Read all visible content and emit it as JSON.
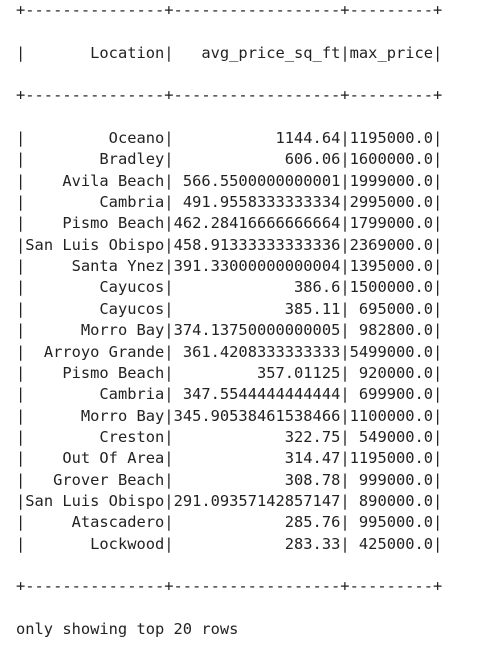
{
  "table": {
    "columns": [
      "Location",
      "avg_price_sq_ft",
      "max_price"
    ],
    "rows": [
      [
        "Oceano",
        "1144.64",
        "1195000.0"
      ],
      [
        "Bradley",
        "606.06",
        "1600000.0"
      ],
      [
        "Avila Beach",
        "566.5500000000001",
        "1999000.0"
      ],
      [
        "Cambria",
        "491.9558333333334",
        "2995000.0"
      ],
      [
        "Pismo Beach",
        "462.28416666666664",
        "1799000.0"
      ],
      [
        "San Luis Obispo",
        "458.91333333333336",
        "2369000.0"
      ],
      [
        "Santa Ynez",
        "391.33000000000004",
        "1395000.0"
      ],
      [
        "Cayucos",
        "386.6",
        "1500000.0"
      ],
      [
        "Cayucos",
        "385.11",
        "695000.0"
      ],
      [
        "Morro Bay",
        "374.13750000000005",
        "982800.0"
      ],
      [
        "Arroyo Grande",
        "361.4208333333333",
        "5499000.0"
      ],
      [
        "Pismo Beach",
        "357.01125",
        "920000.0"
      ],
      [
        "Cambria",
        "347.5544444444444",
        "699900.0"
      ],
      [
        "Morro Bay",
        "345.90538461538466",
        "1100000.0"
      ],
      [
        "Creston",
        "322.75",
        "549000.0"
      ],
      [
        "Out Of Area",
        "314.47",
        "1195000.0"
      ],
      [
        "Grover Beach",
        "308.78",
        "999000.0"
      ],
      [
        "San Luis Obispo",
        "291.09357142857147",
        "890000.0"
      ],
      [
        "Atascadero",
        "285.76",
        "995000.0"
      ],
      [
        "Lockwood",
        "283.33",
        "425000.0"
      ]
    ]
  },
  "footer": "only showing top 20 rows"
}
